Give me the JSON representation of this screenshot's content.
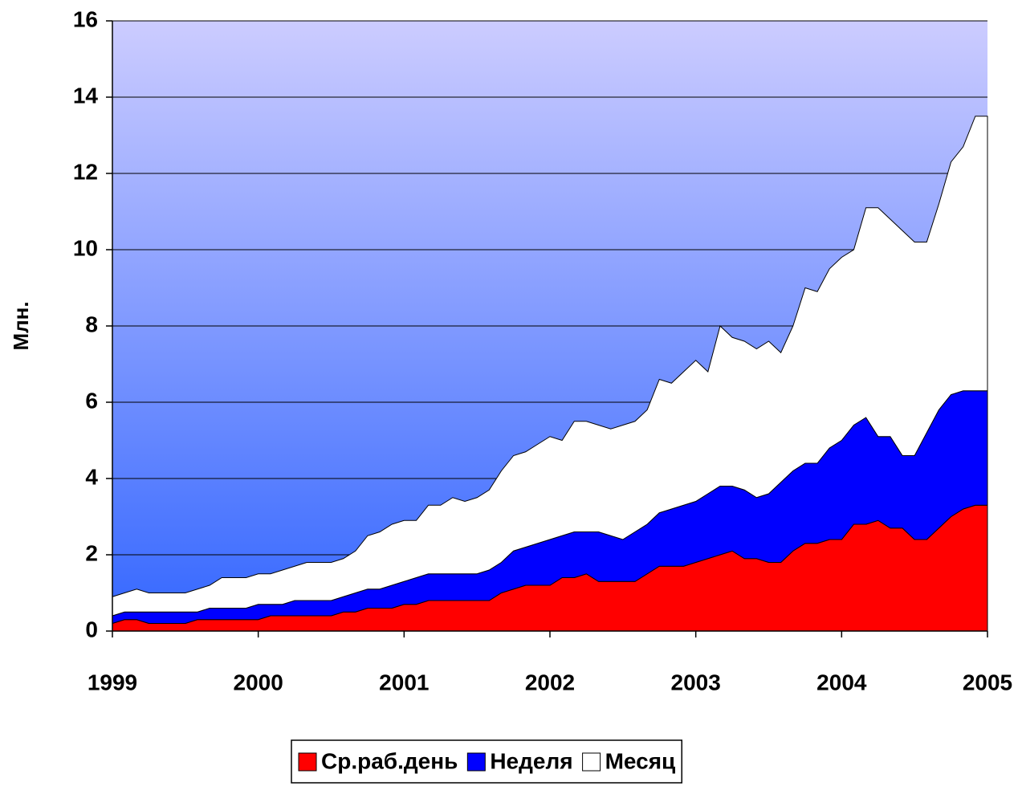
{
  "chart_data": {
    "type": "stacked_area",
    "y_label": "Млн.",
    "categories": [
      "1999",
      null,
      null,
      null,
      null,
      null,
      null,
      null,
      null,
      null,
      null,
      null,
      "2000",
      null,
      null,
      null,
      null,
      null,
      null,
      null,
      null,
      null,
      null,
      null,
      "2001",
      null,
      null,
      null,
      null,
      null,
      null,
      null,
      null,
      null,
      null,
      null,
      "2002",
      null,
      null,
      null,
      null,
      null,
      null,
      null,
      null,
      null,
      null,
      null,
      "2003",
      null,
      null,
      null,
      null,
      null,
      null,
      null,
      null,
      null,
      null,
      null,
      "2004",
      null,
      null,
      null,
      null,
      null,
      null,
      null,
      null,
      null,
      null,
      null,
      "2005"
    ],
    "series": [
      {
        "name": "Ср.раб.день",
        "color": "#ff0000",
        "values": [
          0.2,
          0.3,
          0.3,
          0.2,
          0.2,
          0.2,
          0.2,
          0.3,
          0.3,
          0.3,
          0.3,
          0.3,
          0.3,
          0.4,
          0.4,
          0.4,
          0.4,
          0.4,
          0.4,
          0.5,
          0.5,
          0.6,
          0.6,
          0.6,
          0.7,
          0.7,
          0.8,
          0.8,
          0.8,
          0.8,
          0.8,
          0.8,
          1.0,
          1.1,
          1.2,
          1.2,
          1.2,
          1.4,
          1.4,
          1.5,
          1.3,
          1.3,
          1.3,
          1.3,
          1.5,
          1.7,
          1.7,
          1.7,
          1.8,
          1.9,
          2.0,
          2.1,
          1.9,
          1.9,
          1.8,
          1.8,
          2.1,
          2.3,
          2.3,
          2.4,
          2.4,
          2.8,
          2.8,
          2.9,
          2.7,
          2.7,
          2.4,
          2.4,
          2.7,
          3.0,
          3.2,
          3.3,
          3.3
        ]
      },
      {
        "name": "Неделя",
        "color": "#0000ff",
        "values": [
          0.2,
          0.2,
          0.2,
          0.3,
          0.3,
          0.3,
          0.3,
          0.2,
          0.3,
          0.3,
          0.3,
          0.3,
          0.4,
          0.3,
          0.3,
          0.4,
          0.4,
          0.4,
          0.4,
          0.4,
          0.5,
          0.5,
          0.5,
          0.6,
          0.6,
          0.7,
          0.7,
          0.7,
          0.7,
          0.7,
          0.7,
          0.8,
          0.8,
          1.0,
          1.0,
          1.1,
          1.2,
          1.1,
          1.2,
          1.1,
          1.3,
          1.2,
          1.1,
          1.3,
          1.3,
          1.4,
          1.5,
          1.6,
          1.6,
          1.7,
          1.8,
          1.7,
          1.8,
          1.6,
          1.8,
          2.1,
          2.1,
          2.1,
          2.1,
          2.4,
          2.6,
          2.6,
          2.8,
          2.2,
          2.4,
          1.9,
          2.2,
          2.8,
          3.1,
          3.2,
          3.1,
          3.0,
          3.0
        ]
      },
      {
        "name": "Месяц",
        "color": "#ffffff",
        "values": [
          0.5,
          0.5,
          0.6,
          0.5,
          0.5,
          0.5,
          0.5,
          0.6,
          0.6,
          0.8,
          0.8,
          0.8,
          0.8,
          0.8,
          0.9,
          0.9,
          1.0,
          1.0,
          1.0,
          1.0,
          1.1,
          1.4,
          1.5,
          1.6,
          1.6,
          1.5,
          1.8,
          1.8,
          2.0,
          1.9,
          2.0,
          2.1,
          2.4,
          2.5,
          2.5,
          2.6,
          2.7,
          2.5,
          2.9,
          2.9,
          2.8,
          2.8,
          3.0,
          2.9,
          3.0,
          3.5,
          3.3,
          3.5,
          3.7,
          3.2,
          4.2,
          3.9,
          3.9,
          3.9,
          4.0,
          3.4,
          3.8,
          4.6,
          4.5,
          4.7,
          4.8,
          4.6,
          5.5,
          6.0,
          5.7,
          5.9,
          5.6,
          5.0,
          5.4,
          6.1,
          6.4,
          7.2,
          7.2
        ]
      }
    ],
    "ylim": [
      0,
      16
    ],
    "yticks": [
      0,
      2,
      4,
      6,
      8,
      10,
      12,
      14,
      16
    ],
    "grid": true,
    "legend": "bottom"
  }
}
